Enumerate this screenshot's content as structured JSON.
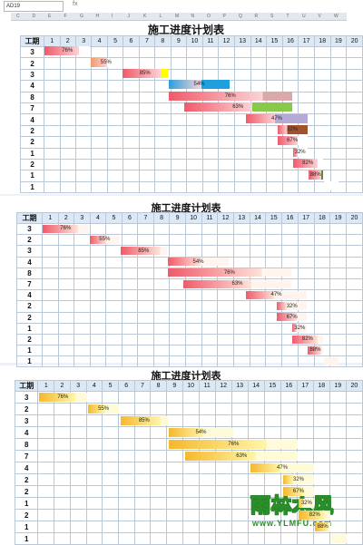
{
  "toolbar": {
    "name_box": "AD19",
    "fx_label": "fx"
  },
  "sheet": {
    "title": "施工进度计划表",
    "period_header": "工期",
    "day_numbers": [
      "1",
      "2",
      "3",
      "4",
      "5",
      "6",
      "7",
      "8",
      "9",
      "10",
      "11",
      "12",
      "13",
      "14",
      "15",
      "16",
      "17",
      "18",
      "19",
      "20"
    ],
    "periods": [
      "3",
      "2",
      "3",
      "4",
      "8",
      "7",
      "4",
      "2",
      "2",
      "1",
      "2",
      "1",
      "1"
    ],
    "col_letters": [
      "C",
      "D",
      "E",
      "F",
      "G",
      "H",
      "I",
      "J",
      "K",
      "L",
      "M",
      "N",
      "O",
      "P",
      "Q",
      "R",
      "S",
      "T",
      "U",
      "V",
      "W"
    ],
    "row_numbers": [
      "2",
      "3",
      "4",
      "5",
      "6",
      "7",
      "8",
      "9",
      "10",
      "11",
      "12",
      "13",
      "14",
      "15"
    ]
  },
  "tasks": [
    {
      "start": 1,
      "days": 3,
      "progress": "76%",
      "pct": 0.76
    },
    {
      "start": 4,
      "days": 2,
      "progress": "55%",
      "pct": 0.55
    },
    {
      "start": 6,
      "days": 3,
      "progress": "85%",
      "pct": 0.85
    },
    {
      "start": 9,
      "days": 4,
      "progress": "54%",
      "pct": 0.54
    },
    {
      "start": 9,
      "days": 8,
      "progress": "76%",
      "pct": 0.76
    },
    {
      "start": 10,
      "days": 7,
      "progress": "63%",
      "pct": 0.63
    },
    {
      "start": 14,
      "days": 4,
      "progress": "47%",
      "pct": 0.47
    },
    {
      "start": 16,
      "days": 2,
      "progress": "32%",
      "pct": 0.32
    },
    {
      "start": 16,
      "days": 2,
      "progress": "67%",
      "pct": 0.67
    },
    {
      "start": 17,
      "days": 1,
      "progress": "32%",
      "pct": 0.32
    },
    {
      "start": 17,
      "days": 2,
      "progress": "82%",
      "pct": 0.82
    },
    {
      "start": 18,
      "days": 1,
      "progress": "88%",
      "pct": 0.88
    },
    {
      "start": 19,
      "days": 1,
      "progress": "",
      "pct": 0
    }
  ],
  "panels": [
    {
      "style": "colored",
      "colors": [
        "#f05a6a",
        "#f19a6a",
        "#f05a6a",
        "#2a9fe0",
        "#f05a6a",
        "#f05a6a",
        "#f05a6a",
        "#f05a6a",
        "#f05a6a",
        "#f05a6a",
        "#f05a6a",
        "#f05a6a",
        "#f05a6a"
      ],
      "fills": [
        "#ffffff",
        "#ffffff",
        "#ffff00",
        "#1f9fde",
        "#dba9a9",
        "#88c84a",
        "#b5a9d6",
        "#a0522d",
        "#ffffff",
        "#ffffff",
        "#ffffff",
        "#5f8a3a",
        "#ffffff"
      ]
    },
    {
      "style": "red",
      "color": "#f05a6a"
    },
    {
      "style": "yellow",
      "color": "#f5b82e"
    }
  ],
  "watermark": {
    "brand": "雨林木风",
    "url": "www.YLMFU.com"
  }
}
